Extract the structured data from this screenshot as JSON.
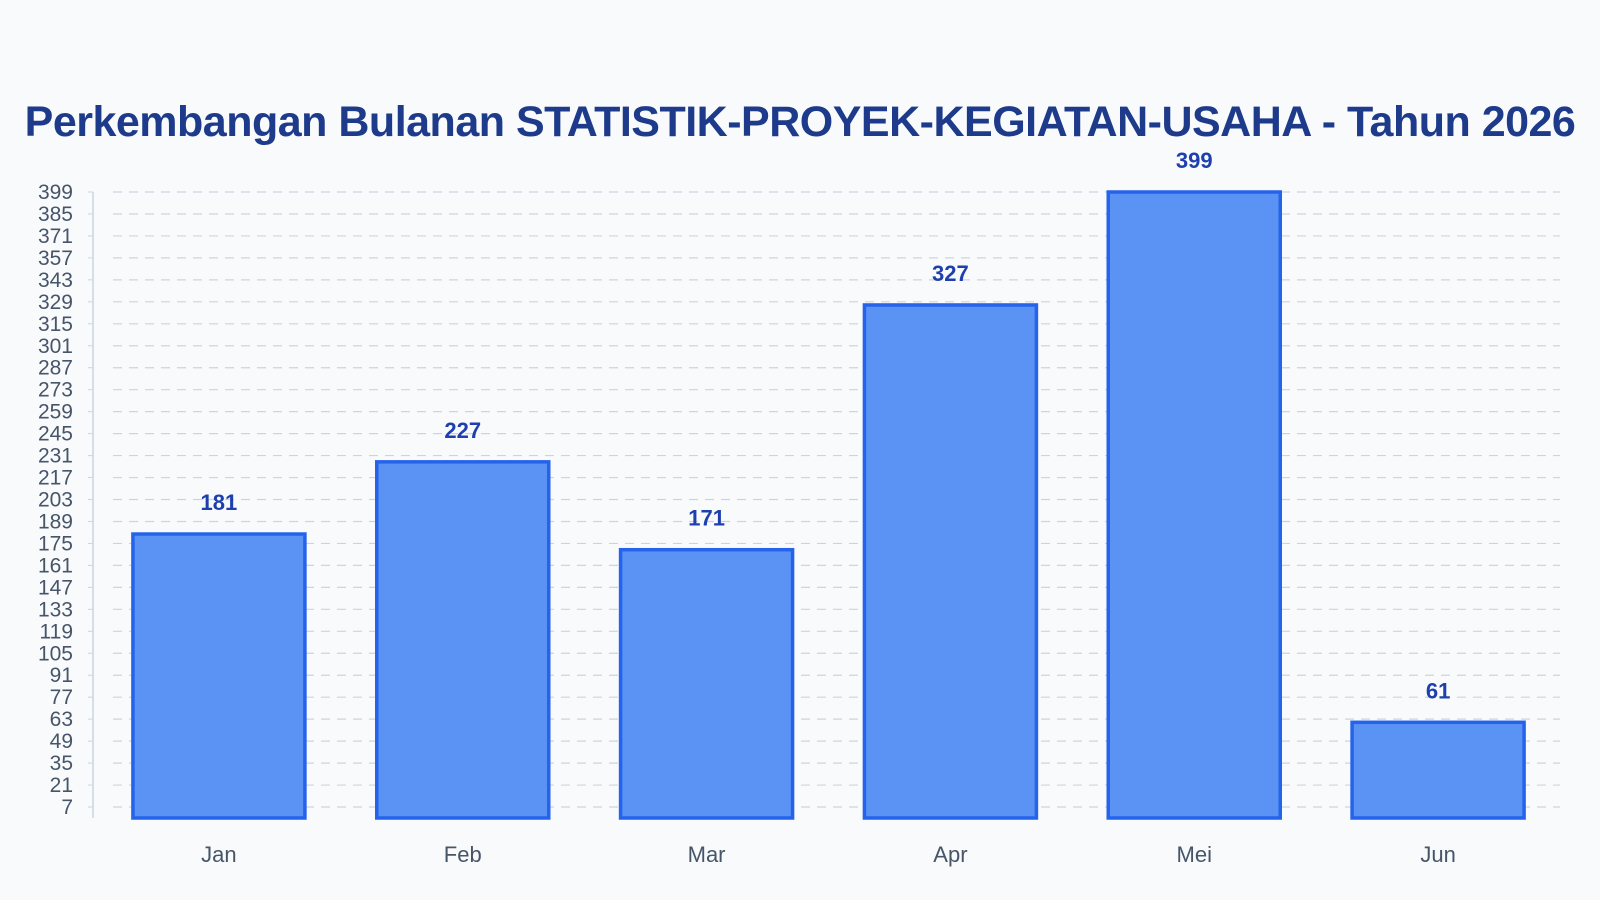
{
  "chart_data": {
    "type": "bar",
    "title": "Perkembangan Bulanan STATISTIK-PROYEK-KEGIATAN-USAHA - Tahun 2026",
    "xlabel": "",
    "ylabel": "",
    "categories": [
      "Jan",
      "Feb",
      "Mar",
      "Apr",
      "Mei",
      "Jun"
    ],
    "values": [
      181,
      227,
      171,
      327,
      399,
      61
    ],
    "ylim": [
      0,
      399
    ],
    "yticks": [
      7,
      21,
      35,
      49,
      63,
      77,
      91,
      105,
      119,
      133,
      147,
      161,
      175,
      189,
      203,
      217,
      231,
      245,
      259,
      273,
      287,
      301,
      315,
      329,
      343,
      357,
      371,
      385,
      399
    ],
    "grid": true,
    "legend": "none"
  },
  "colors": {
    "background": "#f8fafc",
    "title": "#1e3a8a",
    "bar_fill": "#5b93f5",
    "bar_stroke": "#2563eb",
    "value_label": "#1e40af",
    "axis_text": "#475569",
    "grid": "#cbd5e1",
    "axis_line": "#cbd5e1"
  }
}
